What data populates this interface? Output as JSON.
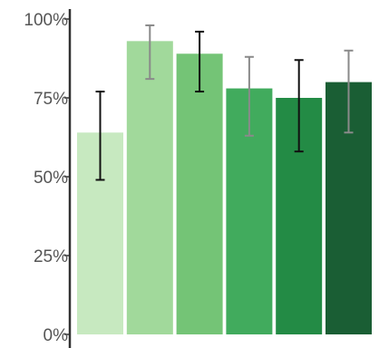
{
  "chart_data": {
    "type": "bar",
    "title": "",
    "xlabel": "",
    "ylabel": "",
    "ylim": [
      0,
      100
    ],
    "yticks": [
      {
        "value": 0,
        "label": "0%"
      },
      {
        "value": 25,
        "label": "25%"
      },
      {
        "value": 50,
        "label": "50%"
      },
      {
        "value": 75,
        "label": "75%"
      },
      {
        "value": 100,
        "label": "100%"
      }
    ],
    "grid": false,
    "legend": "none",
    "bars": [
      {
        "value": 64,
        "err_low": 49,
        "err_high": 77,
        "color": "#c7e9c0",
        "err_color": "#111111"
      },
      {
        "value": 93,
        "err_low": 81,
        "err_high": 98,
        "color": "#a1d99b",
        "err_color": "#8a8a8a"
      },
      {
        "value": 89,
        "err_low": 77,
        "err_high": 96,
        "color": "#74c476",
        "err_color": "#111111"
      },
      {
        "value": 78,
        "err_low": 63,
        "err_high": 88,
        "color": "#41ab5d",
        "err_color": "#8a8a8a"
      },
      {
        "value": 75,
        "err_low": 58,
        "err_high": 87,
        "color": "#238b45",
        "err_color": "#111111"
      },
      {
        "value": 80,
        "err_low": 64,
        "err_high": 90,
        "color": "#1a5e34",
        "err_color": "#8a8a8a"
      }
    ]
  }
}
